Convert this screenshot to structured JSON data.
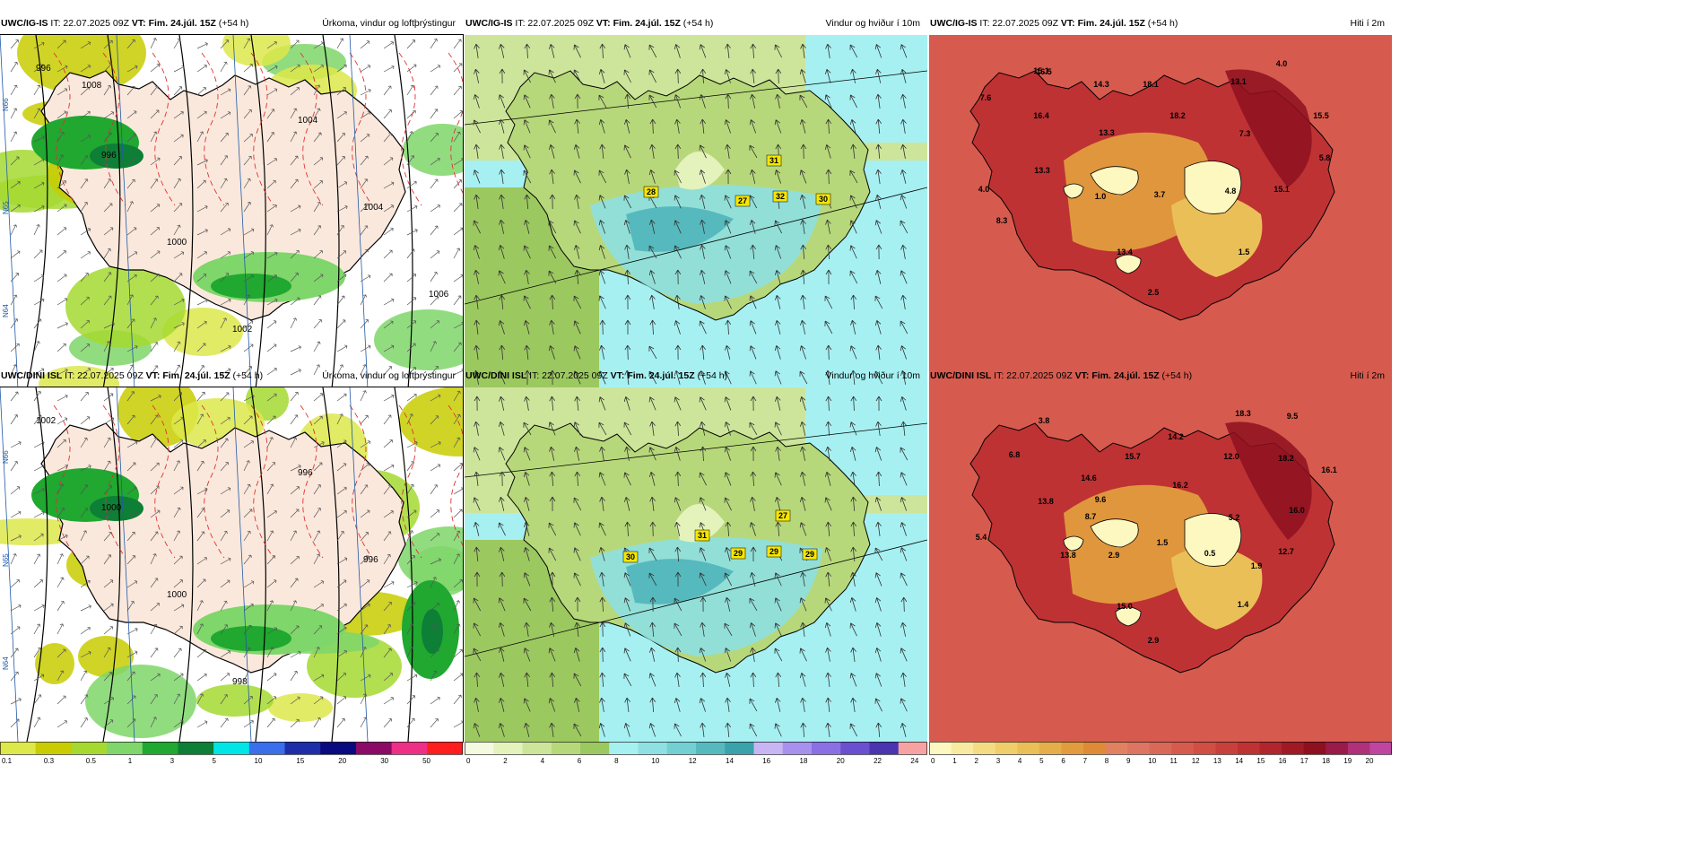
{
  "rows": [
    {
      "model": "UWC/IG-IS",
      "it": "22.07.2025 09Z",
      "vt_label": "VT:",
      "vt": "Fim. 24.júl. 15Z",
      "lead": "(+54 h)",
      "panels": {
        "precip": {
          "title": "Úrkoma, vindur og loftþrýstingur",
          "isobars": [
            "996",
            "996",
            "1000",
            "1002",
            "1004",
            "1004",
            "1006",
            "1008"
          ],
          "gridlabels": [
            "N66",
            "N65",
            "N64"
          ]
        },
        "wind": {
          "title": "Vindur og hviður í 10m",
          "gusts": [
            "31",
            "28",
            "27",
            "32",
            "30"
          ]
        },
        "temp": {
          "title": "Hiti í 2m",
          "temps": [
            "15.1",
            "4.0",
            "16.5",
            "14.3",
            "18.1",
            "13.1",
            "7.6",
            "16.4",
            "18.2",
            "15.5",
            "13.3",
            "7.3",
            "13.3",
            "5.8",
            "4.0",
            "1.0",
            "3.7",
            "4.8",
            "15.1",
            "8.3",
            "13.4",
            "1.5",
            "2.5"
          ]
        }
      }
    },
    {
      "model": "UWC/DINI ISL",
      "it": "22.07.2025 09Z",
      "vt_label": "VT:",
      "vt": "Fim. 24.júl. 15Z",
      "lead": "(+54 h)",
      "panels": {
        "precip": {
          "title": "Úrkoma, vindur og loftþrýstingur",
          "isobars": [
            "1002",
            "1000",
            "1000",
            "998",
            "996",
            "996"
          ],
          "gridlabels": [
            "N66",
            "N65",
            "N64"
          ]
        },
        "wind": {
          "title": "Vindur og hviður í 10m",
          "gusts": [
            "27",
            "31",
            "30",
            "29",
            "29",
            "29"
          ]
        },
        "temp": {
          "title": "Hiti í 2m",
          "temps": [
            "3.8",
            "18.3",
            "9.5",
            "6.8",
            "14.2",
            "15.7",
            "14.6",
            "12.0",
            "18.2",
            "16.1",
            "16.2",
            "9.6",
            "13.8",
            "8.7",
            "5.2",
            "16.0",
            "5.4",
            "2.9",
            "1.5",
            "0.5",
            "12.7",
            "13.8",
            "1.9",
            "15.0",
            "1.4",
            "2.9"
          ]
        }
      }
    }
  ],
  "legends": {
    "precip": {
      "ticks": [
        "0.1",
        "0.3",
        "0.5",
        "1",
        "3",
        "5",
        "10",
        "15",
        "20",
        "30",
        "50"
      ],
      "colors": [
        "#dde84a",
        "#c8cc00",
        "#a5d930",
        "#7fd66a",
        "#20a830",
        "#0e7f36",
        "#00e6e6",
        "#3a6eea",
        "#1e2ea8",
        "#0a0a80",
        "#8a0a66",
        "#ee2f86",
        "#ff1e1e"
      ]
    },
    "wind": {
      "ticks": [
        "0",
        "2",
        "4",
        "6",
        "8",
        "10",
        "12",
        "14",
        "16",
        "18",
        "20",
        "22",
        "24"
      ],
      "colors": [
        "#f4fae0",
        "#e4f2bc",
        "#cde59a",
        "#b7d87a",
        "#9cc860",
        "#a6f0f2",
        "#8ee0e2",
        "#72cfd2",
        "#56b9be",
        "#3aa2aa",
        "#c8b6f4",
        "#a890ee",
        "#8a70e4",
        "#6a50d0",
        "#4a34b0",
        "#f6a2a2"
      ]
    },
    "temp": {
      "ticks1": [
        "0",
        "1",
        "2",
        "3",
        "4",
        "5",
        "6",
        "7",
        "8",
        "9",
        "10",
        "11",
        "12",
        "13",
        "14",
        "15",
        "16",
        "17",
        "18",
        "19"
      ],
      "ticks2": [
        "0",
        "1",
        "2",
        "3",
        "4",
        "5",
        "6",
        "7",
        "8",
        "9",
        "10",
        "11",
        "12",
        "13",
        "14",
        "15",
        "16",
        "17",
        "18",
        "19",
        "20"
      ],
      "colors": [
        "#fdf7c0",
        "#f9eaa2",
        "#f4dc84",
        "#f0ce6a",
        "#ebbf58",
        "#e6ae4a",
        "#e29c3e",
        "#de8a36",
        "#e28160",
        "#de7462",
        "#da6858",
        "#d65b4e",
        "#d04e44",
        "#c8403c",
        "#be3234",
        "#b0262c",
        "#a01a26",
        "#8e1020",
        "#9a1a4a",
        "#b0307a",
        "#c045a0"
      ]
    }
  }
}
